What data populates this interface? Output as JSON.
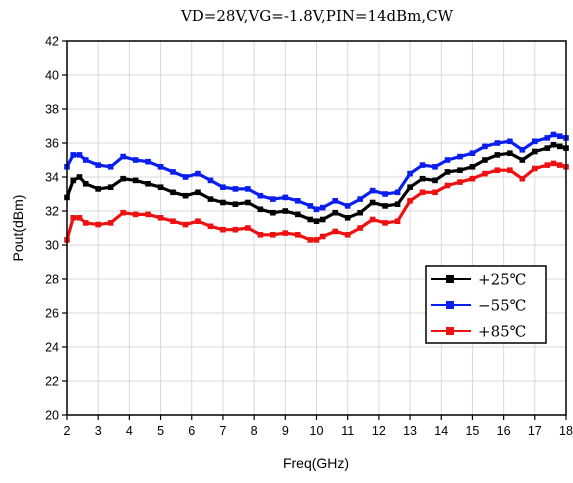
{
  "chart_data": {
    "type": "line",
    "title": "VD=28V,VG=-1.8V,PIN=14dBm,CW",
    "xlabel": "Freq(GHz)",
    "ylabel": "Pout(dBm)",
    "xlim": [
      2,
      18
    ],
    "ylim": [
      20,
      42
    ],
    "xticks": [
      2,
      3,
      4,
      5,
      6,
      7,
      8,
      9,
      10,
      11,
      12,
      13,
      14,
      15,
      16,
      17,
      18
    ],
    "yticks": [
      20,
      22,
      24,
      26,
      28,
      30,
      32,
      34,
      36,
      38,
      40,
      42
    ],
    "grid": true,
    "legend_position": "lower-right",
    "x": [
      2.0,
      2.2,
      2.4,
      2.6,
      3.0,
      3.4,
      3.8,
      4.2,
      4.6,
      5.0,
      5.4,
      5.8,
      6.2,
      6.6,
      7.0,
      7.4,
      7.8,
      8.2,
      8.6,
      9.0,
      9.4,
      9.8,
      10.0,
      10.2,
      10.6,
      11.0,
      11.4,
      11.8,
      12.2,
      12.6,
      13.0,
      13.4,
      13.8,
      14.2,
      14.6,
      15.0,
      15.4,
      15.8,
      16.2,
      16.6,
      17.0,
      17.4,
      17.6,
      17.8,
      18.0
    ],
    "series": [
      {
        "name": "+25℃",
        "color": "#000000",
        "values": [
          32.8,
          33.8,
          34.0,
          33.6,
          33.3,
          33.4,
          33.9,
          33.8,
          33.6,
          33.4,
          33.1,
          32.9,
          33.1,
          32.7,
          32.5,
          32.4,
          32.5,
          32.1,
          31.9,
          32.0,
          31.8,
          31.5,
          31.4,
          31.5,
          31.9,
          31.6,
          31.9,
          32.5,
          32.3,
          32.4,
          33.4,
          33.9,
          33.8,
          34.3,
          34.4,
          34.6,
          35.0,
          35.3,
          35.4,
          35.0,
          35.5,
          35.7,
          35.9,
          35.8,
          35.7
        ]
      },
      {
        "name": "−55℃",
        "color": "#0a1ef0",
        "values": [
          34.6,
          35.3,
          35.3,
          35.0,
          34.7,
          34.6,
          35.2,
          35.0,
          34.9,
          34.6,
          34.3,
          34.0,
          34.2,
          33.8,
          33.4,
          33.3,
          33.3,
          32.9,
          32.7,
          32.8,
          32.6,
          32.3,
          32.1,
          32.2,
          32.6,
          32.3,
          32.7,
          33.2,
          33.0,
          33.1,
          34.2,
          34.7,
          34.6,
          35.0,
          35.2,
          35.4,
          35.8,
          36.0,
          36.1,
          35.6,
          36.1,
          36.3,
          36.5,
          36.4,
          36.3
        ]
      },
      {
        "name": "+85℃",
        "color": "#ee1111",
        "values": [
          30.3,
          31.6,
          31.6,
          31.3,
          31.2,
          31.3,
          31.9,
          31.8,
          31.8,
          31.6,
          31.4,
          31.2,
          31.4,
          31.1,
          30.9,
          30.9,
          31.0,
          30.6,
          30.6,
          30.7,
          30.6,
          30.3,
          30.3,
          30.5,
          30.8,
          30.6,
          31.0,
          31.5,
          31.3,
          31.4,
          32.6,
          33.1,
          33.1,
          33.5,
          33.7,
          33.9,
          34.2,
          34.4,
          34.4,
          33.9,
          34.5,
          34.7,
          34.8,
          34.7,
          34.6
        ]
      }
    ]
  }
}
